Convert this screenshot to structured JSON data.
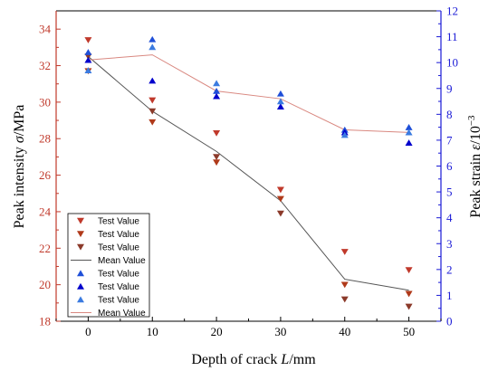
{
  "chart_data": {
    "type": "scatter",
    "xlabel": "Depth of crack L/mm",
    "ylabel_left": "Peak intensity σ/MPa",
    "ylabel_right": "Peak strain  ε/10⁻³",
    "x_ticks": [
      0,
      10,
      20,
      30,
      40,
      50
    ],
    "xlim": [
      -5,
      55
    ],
    "ylim_left": [
      18,
      35
    ],
    "yticks_left": [
      18,
      20,
      22,
      24,
      26,
      28,
      30,
      32,
      34
    ],
    "ylim_right": [
      0,
      12
    ],
    "yticks_right": [
      0,
      1,
      2,
      3,
      4,
      5,
      6,
      7,
      8,
      9,
      10,
      11,
      12
    ],
    "left_color": "#c0392b",
    "right_color": "#1a1ad6",
    "intensity_test": [
      {
        "name": "Test Value",
        "color": "#c0392b",
        "x": [
          0,
          10,
          20,
          30,
          40,
          50
        ],
        "y": [
          33.4,
          30.1,
          28.3,
          25.2,
          21.8,
          20.8
        ]
      },
      {
        "name": "Test Value",
        "color": "#b03a1a",
        "x": [
          0,
          10,
          20,
          30,
          40,
          50
        ],
        "y": [
          31.7,
          28.9,
          26.7,
          24.7,
          20.0,
          19.5
        ]
      },
      {
        "name": "Test Value",
        "color": "#8b3a2a",
        "x": [
          0,
          10,
          20,
          30,
          40,
          50
        ],
        "y": [
          32.5,
          29.5,
          27.0,
          23.9,
          19.2,
          18.8
        ]
      }
    ],
    "intensity_mean": {
      "name": "Mean Value",
      "color": "#555555",
      "x": [
        0,
        10,
        20,
        30,
        40,
        50
      ],
      "y": [
        32.5,
        29.5,
        27.3,
        24.6,
        20.3,
        19.7
      ]
    },
    "strain_test": [
      {
        "name": "Test Value",
        "color": "#1f4fd8",
        "x": [
          0,
          10,
          20,
          30,
          40,
          50
        ],
        "y": [
          10.4,
          10.9,
          8.9,
          8.8,
          7.4,
          7.5
        ]
      },
      {
        "name": "Test Value",
        "color": "#0000cc",
        "x": [
          0,
          10,
          20,
          30,
          40,
          50
        ],
        "y": [
          10.1,
          9.3,
          8.7,
          8.3,
          7.3,
          6.9
        ]
      },
      {
        "name": "Test Value",
        "color": "#3b7be0",
        "x": [
          0,
          10,
          20,
          30,
          40,
          50
        ],
        "y": [
          9.7,
          10.6,
          9.2,
          8.5,
          7.2,
          7.3
        ]
      }
    ],
    "strain_mean": {
      "name": "Mean Value",
      "color": "#d98880",
      "x": [
        0,
        10,
        20,
        30,
        40,
        50
      ],
      "y": [
        10.1,
        10.3,
        8.9,
        8.6,
        7.4,
        7.3
      ]
    },
    "legend_position": "bottom-left"
  }
}
